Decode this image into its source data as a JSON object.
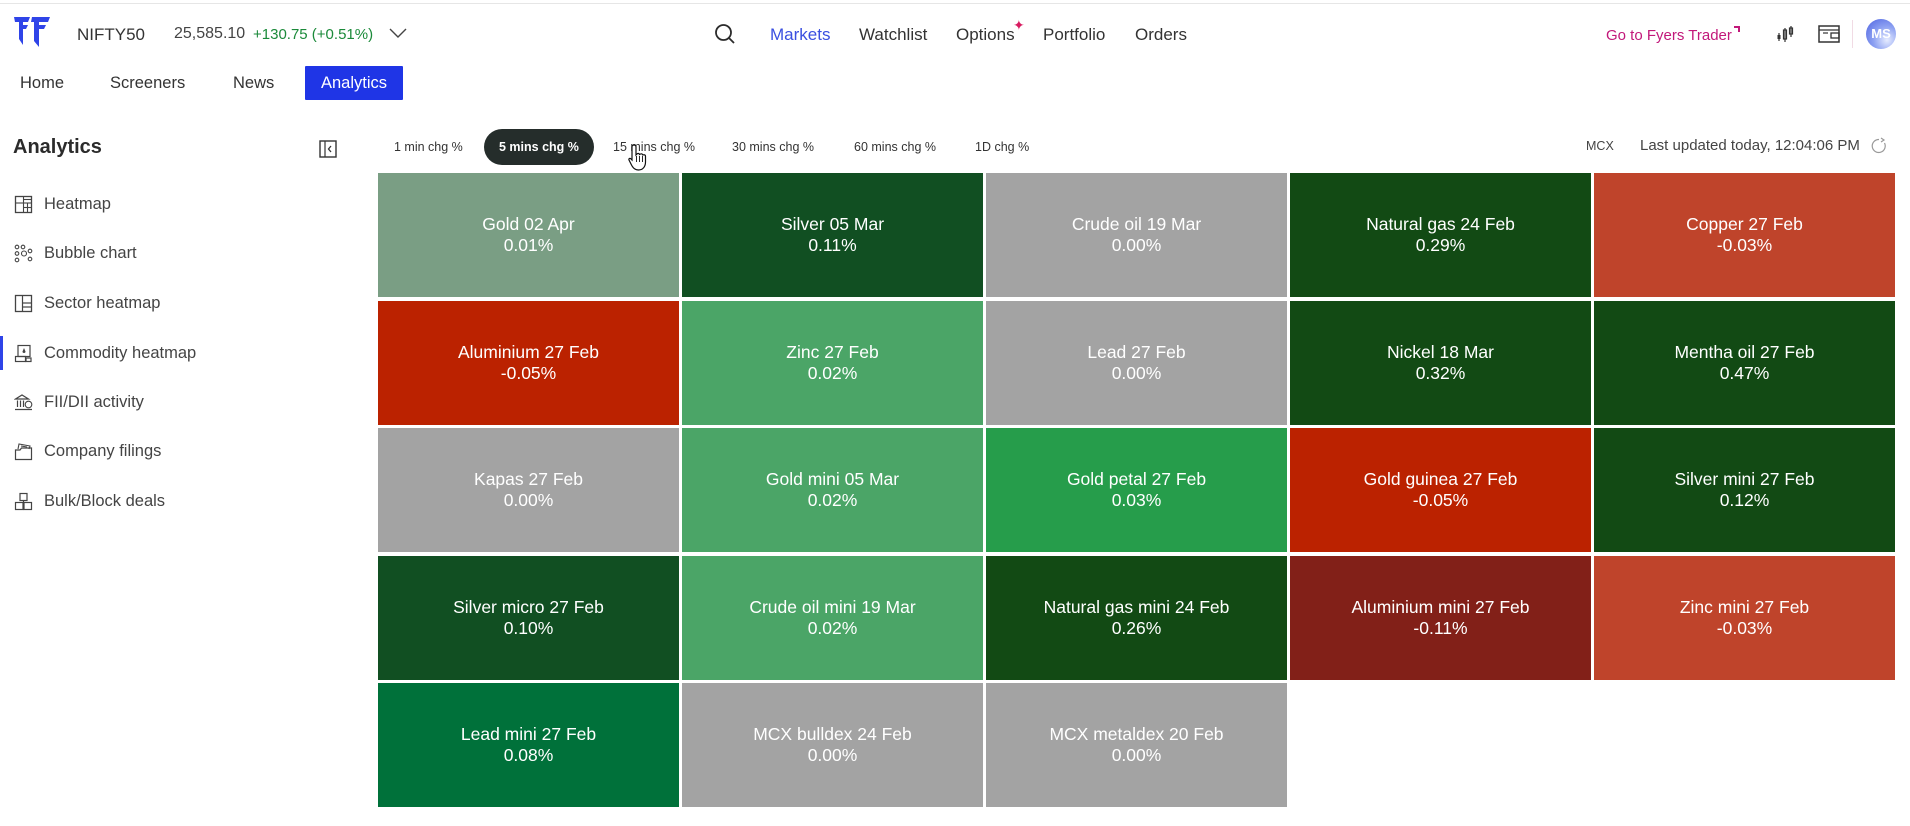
{
  "header": {
    "index": {
      "name": "NIFTY50",
      "price": "25,585.10",
      "change": "+130.75 (+0.51%)"
    },
    "nav": [
      {
        "label": "Markets",
        "active": true
      },
      {
        "label": "Watchlist",
        "active": false
      },
      {
        "label": "Options",
        "active": false,
        "badge": "sparkle"
      },
      {
        "label": "Portfolio",
        "active": false
      },
      {
        "label": "Orders",
        "active": false
      }
    ],
    "fyers_trader_link": "Go to Fyers Trader",
    "avatar_initials": "MS"
  },
  "subnav": [
    {
      "label": "Home",
      "active": false
    },
    {
      "label": "Screeners",
      "active": false
    },
    {
      "label": "News",
      "active": false
    },
    {
      "label": "Analytics",
      "active": true
    }
  ],
  "sidebar": {
    "title": "Analytics",
    "items": [
      {
        "label": "Heatmap",
        "icon": "heatmap-icon",
        "active": false
      },
      {
        "label": "Bubble chart",
        "icon": "bubble-chart-icon",
        "active": false
      },
      {
        "label": "Sector heatmap",
        "icon": "sector-heatmap-icon",
        "active": false
      },
      {
        "label": "Commodity heatmap",
        "icon": "commodity-heatmap-icon",
        "active": true
      },
      {
        "label": "FII/DII activity",
        "icon": "bank-icon",
        "active": false
      },
      {
        "label": "Company filings",
        "icon": "folder-icon",
        "active": false
      },
      {
        "label": "Bulk/Block deals",
        "icon": "boxes-icon",
        "active": false
      }
    ]
  },
  "filters": {
    "pills": [
      {
        "label": "1 min chg %",
        "active": false
      },
      {
        "label": "5 mins chg %",
        "active": true
      },
      {
        "label": "15 mins chg %",
        "active": false
      },
      {
        "label": "30 mins chg %",
        "active": false
      },
      {
        "label": "60 mins chg %",
        "active": false
      },
      {
        "label": "1D chg %",
        "active": false
      }
    ],
    "exchange": "MCX",
    "last_updated": "Last updated today, 12:04:06 PM"
  },
  "colors": {
    "accent": "#1f35e6",
    "positive_text": "#1b8a3a",
    "neutral_tile": "#a3a3a3"
  },
  "heatmap": {
    "tiles": [
      {
        "name": "Gold 02 Apr",
        "change": "0.01%",
        "color": "#7a9e84"
      },
      {
        "name": "Silver 05 Mar",
        "change": "0.11%",
        "color": "#114f22"
      },
      {
        "name": "Crude oil 19 Mar",
        "change": "0.00%",
        "color": "#a3a3a3"
      },
      {
        "name": "Natural gas 24 Feb",
        "change": "0.29%",
        "color": "#124a14"
      },
      {
        "name": "Copper 27 Feb",
        "change": "-0.03%",
        "color": "#bf442b"
      },
      {
        "name": "Aluminium 27 Feb",
        "change": "-0.05%",
        "color": "#bb2200"
      },
      {
        "name": "Zinc 27 Feb",
        "change": "0.02%",
        "color": "#4ba567"
      },
      {
        "name": "Lead 27 Feb",
        "change": "0.00%",
        "color": "#a3a3a3"
      },
      {
        "name": "Nickel 18 Mar",
        "change": "0.32%",
        "color": "#124a14"
      },
      {
        "name": "Mentha oil 27 Feb",
        "change": "0.47%",
        "color": "#124a14"
      },
      {
        "name": "Kapas 27 Feb",
        "change": "0.00%",
        "color": "#a3a3a3"
      },
      {
        "name": "Gold mini 05 Mar",
        "change": "0.02%",
        "color": "#4ba567"
      },
      {
        "name": "Gold petal 27 Feb",
        "change": "0.03%",
        "color": "#269d4b"
      },
      {
        "name": "Gold guinea 27 Feb",
        "change": "-0.05%",
        "color": "#bb2200"
      },
      {
        "name": "Silver mini 27 Feb",
        "change": "0.12%",
        "color": "#124a14"
      },
      {
        "name": "Silver micro 27 Feb",
        "change": "0.10%",
        "color": "#114f22"
      },
      {
        "name": "Crude oil mini 19 Mar",
        "change": "0.02%",
        "color": "#4ba567"
      },
      {
        "name": "Natural gas mini 24 Feb",
        "change": "0.26%",
        "color": "#124a14"
      },
      {
        "name": "Aluminium mini 27 Feb",
        "change": "-0.11%",
        "color": "#822018"
      },
      {
        "name": "Zinc mini 27 Feb",
        "change": "-0.03%",
        "color": "#bf442b"
      },
      {
        "name": "Lead mini 27 Feb",
        "change": "0.08%",
        "color": "#00713a"
      },
      {
        "name": "MCX bulldex 24 Feb",
        "change": "0.00%",
        "color": "#a3a3a3"
      },
      {
        "name": "MCX metaldex 20 Feb",
        "change": "0.00%",
        "color": "#a3a3a3"
      }
    ]
  }
}
